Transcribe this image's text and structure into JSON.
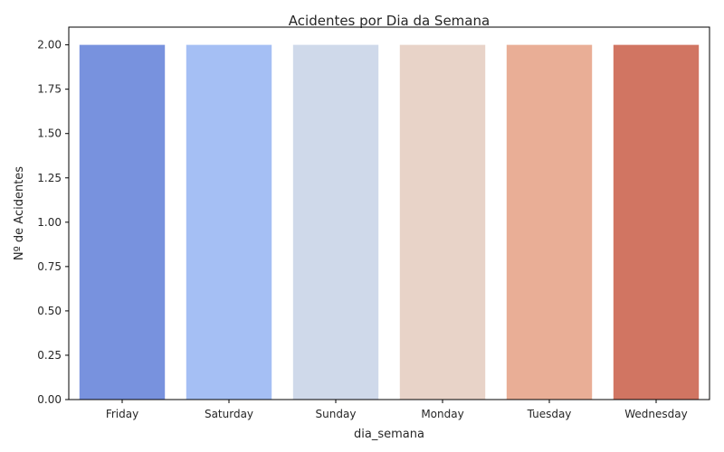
{
  "chart_data": {
    "type": "bar",
    "title": "Acidentes por Dia da Semana",
    "xlabel": "dia_semana",
    "ylabel": "Nº de Acidentes",
    "categories": [
      "Friday",
      "Saturday",
      "Sunday",
      "Monday",
      "Tuesday",
      "Wednesday"
    ],
    "values": [
      2,
      2,
      2,
      2,
      2,
      2
    ],
    "colors": [
      "#7892de",
      "#a5bff4",
      "#cfd9ea",
      "#e8d3c8",
      "#e9ae96",
      "#d17562"
    ],
    "ylim": [
      0,
      2.1
    ],
    "yticks": [
      "0.00",
      "0.25",
      "0.50",
      "0.75",
      "1.00",
      "1.25",
      "1.50",
      "1.75",
      "2.00"
    ],
    "grid": false,
    "legend": "none"
  }
}
